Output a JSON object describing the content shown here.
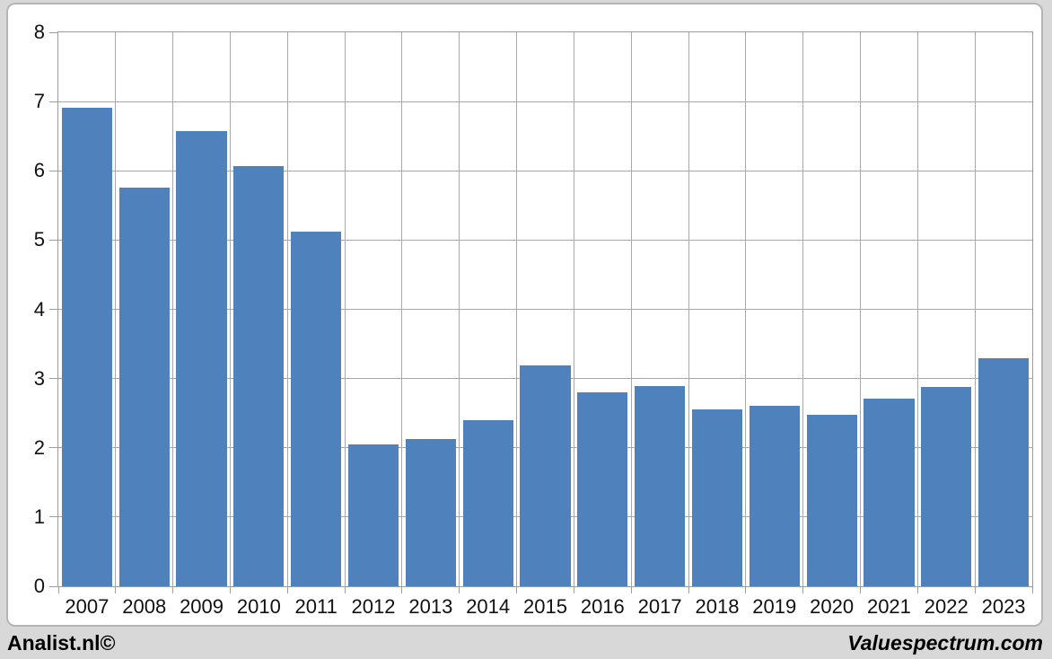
{
  "page": {
    "background_color": "#d8d8d8"
  },
  "chart": {
    "frame_border_color": "#b5b5b5",
    "plot_border_color": "#9c9c9c",
    "gridline_color": "#a8a8a8",
    "bar_color": "#4f81bd",
    "plot_background": "#ffffff"
  },
  "chart_data": {
    "type": "bar",
    "categories": [
      "2007",
      "2008",
      "2009",
      "2010",
      "2011",
      "2012",
      "2013",
      "2014",
      "2015",
      "2016",
      "2017",
      "2018",
      "2019",
      "2020",
      "2021",
      "2022",
      "2023"
    ],
    "values": [
      6.91,
      5.76,
      6.58,
      6.07,
      5.12,
      2.05,
      2.13,
      2.4,
      3.19,
      2.8,
      2.89,
      2.55,
      2.61,
      2.48,
      2.71,
      2.88,
      3.3
    ],
    "title": "",
    "xlabel": "",
    "ylabel": "",
    "ylim": [
      0,
      8
    ],
    "yticks": [
      0,
      1,
      2,
      3,
      4,
      5,
      6,
      7,
      8
    ],
    "grid": "both",
    "legend": "none",
    "bar_color": "#4f81bd"
  },
  "footer": {
    "left_label": "Analist.nl©",
    "right_label": "Valuespectrum.com"
  }
}
